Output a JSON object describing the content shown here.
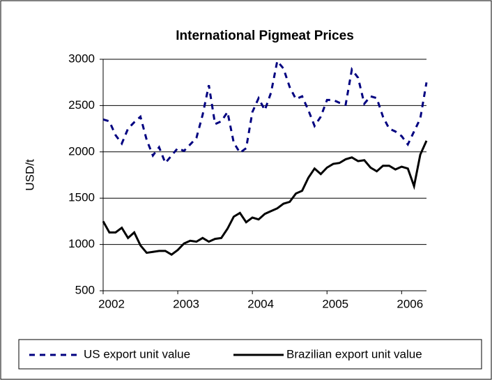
{
  "chart_data": {
    "type": "line",
    "title": "International Pigmeat Prices",
    "y_label": "USD/t",
    "categories": [
      "2002",
      null,
      null,
      null,
      null,
      null,
      null,
      null,
      null,
      null,
      null,
      null,
      "2003",
      null,
      null,
      null,
      null,
      null,
      null,
      null,
      null,
      null,
      null,
      null,
      "2004",
      null,
      null,
      null,
      null,
      null,
      null,
      null,
      null,
      null,
      null,
      null,
      "2005",
      null,
      null,
      null,
      null,
      null,
      null,
      null,
      null,
      null,
      null,
      null,
      "2006",
      null,
      null,
      null,
      null
    ],
    "series": [
      {
        "name": "US export unit value",
        "color": "#000080",
        "dash": true,
        "values": [
          2350,
          2330,
          2180,
          2090,
          2250,
          2320,
          2380,
          2130,
          1960,
          2050,
          1880,
          1960,
          2040,
          2010,
          2080,
          2150,
          2400,
          2720,
          2300,
          2330,
          2430,
          2100,
          1990,
          2040,
          2430,
          2580,
          2450,
          2640,
          2980,
          2900,
          2700,
          2570,
          2600,
          2450,
          2280,
          2380,
          2560,
          2560,
          2530,
          2510,
          2890,
          2800,
          2520,
          2600,
          2580,
          2380,
          2250,
          2220,
          2170,
          2080,
          2220,
          2360,
          2750
        ]
      },
      {
        "name": "Brazilian export unit value",
        "color": "#000000",
        "dash": false,
        "values": [
          1250,
          1130,
          1130,
          1180,
          1070,
          1130,
          990,
          910,
          920,
          930,
          930,
          890,
          940,
          1010,
          1040,
          1030,
          1070,
          1030,
          1060,
          1070,
          1170,
          1300,
          1340,
          1240,
          1290,
          1270,
          1330,
          1360,
          1390,
          1440,
          1460,
          1550,
          1580,
          1720,
          1820,
          1760,
          1830,
          1870,
          1880,
          1920,
          1940,
          1900,
          1910,
          1830,
          1790,
          1850,
          1850,
          1810,
          1840,
          1820,
          1630,
          1970,
          2120
        ]
      }
    ],
    "ylim": [
      500,
      3000
    ],
    "yticks": [
      500,
      1000,
      1500,
      2000,
      2500,
      3000
    ],
    "grid": true
  }
}
